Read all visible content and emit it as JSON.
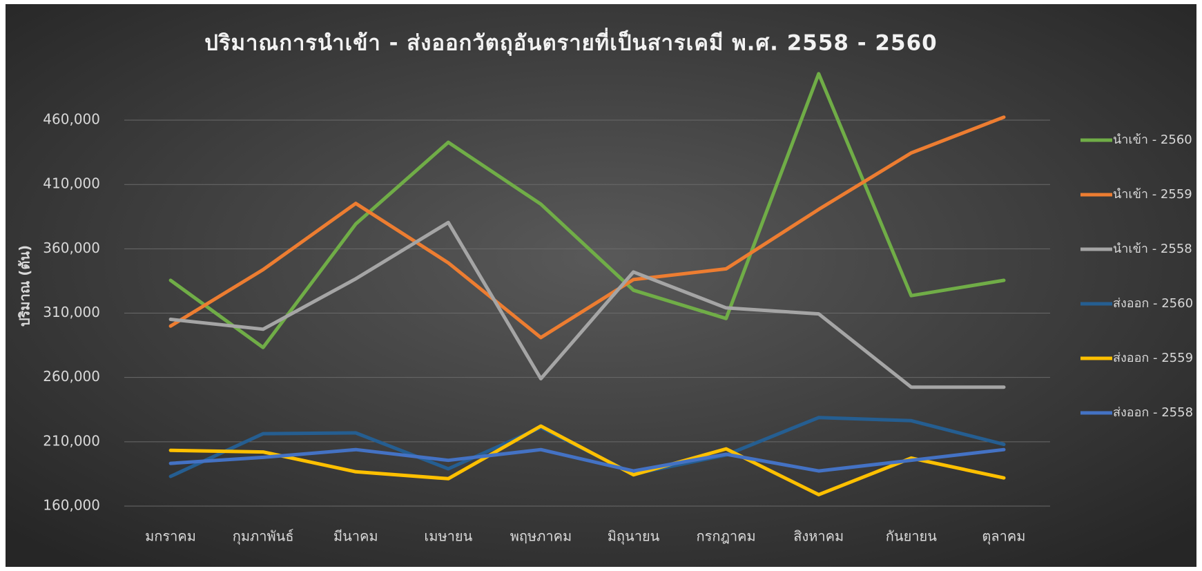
{
  "chart_data": {
    "type": "line",
    "title": "ปริมาณการนำเข้า - ส่งออกวัตถุอันตรายที่เป็นสารเคมี พ.ศ. 2558 - 2560",
    "y_label": "ปริมาณ (ตัน)",
    "categories": [
      "มกราคม",
      "กุมภาพันธ์",
      "มีนาคม",
      "เมษายน",
      "พฤษภาคม",
      "มิถุนายน",
      "กรกฎาคม",
      "สิงหาคม",
      "กันยายน",
      "ตุลาคม"
    ],
    "series": [
      {
        "name": "นำเข้า - 2560",
        "color": "#70ad47",
        "values": [
          335500,
          283300,
          379300,
          442800,
          394700,
          327800,
          305800,
          496100,
          323600,
          335500
        ]
      },
      {
        "name": "นำเข้า - 2559",
        "color": "#ed7d31",
        "values": [
          299900,
          343800,
          395300,
          349100,
          291000,
          336100,
          344400,
          390600,
          434500,
          462300
        ]
      },
      {
        "name": "นำเข้า - 2558",
        "color": "#a5a5a5",
        "values": [
          305200,
          297500,
          336700,
          380500,
          259000,
          342000,
          314100,
          309400,
          252500,
          252500
        ]
      },
      {
        "name": "ส่งออก - 2560",
        "color": "#255e91",
        "values": [
          183100,
          216300,
          216900,
          189000,
          221100,
          184900,
          199700,
          228800,
          226400,
          208000
        ]
      },
      {
        "name": "ส่งออก - 2559",
        "color": "#ffc000",
        "values": [
          203300,
          202100,
          186700,
          181300,
          222200,
          184300,
          204500,
          168900,
          197300,
          181900
        ]
      },
      {
        "name": "ส่งออก - 2558",
        "color": "#4472c4",
        "values": [
          193200,
          197900,
          203900,
          195600,
          203900,
          187300,
          200300,
          187300,
          195600,
          203900
        ]
      }
    ],
    "ylim": [
      160000,
      500000
    ],
    "yticks": [
      {
        "value": 160000,
        "label": "160,000"
      },
      {
        "value": 210000,
        "label": "210,000"
      },
      {
        "value": 260000,
        "label": "260,000"
      },
      {
        "value": 310000,
        "label": "310,000"
      },
      {
        "value": 360000,
        "label": "360,000"
      },
      {
        "value": 410000,
        "label": "410,000"
      },
      {
        "value": 460000,
        "label": "460,000"
      }
    ],
    "grid": true,
    "legend": "right"
  }
}
